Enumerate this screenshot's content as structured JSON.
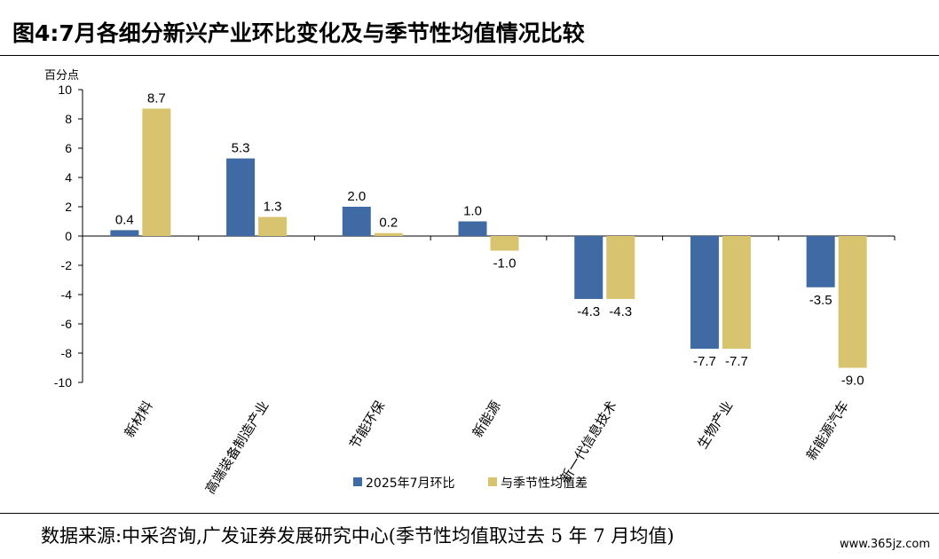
{
  "header": {
    "title": "图4:7月各细分新兴产业环比变化及与季节性均值情况比较"
  },
  "footer": {
    "source": "数据来源:中采咨询,广发证券发展研究中心(季节性均值取过去 5 年 7 月均值)",
    "watermark": "www.365jz.com"
  },
  "colors": {
    "series1": "#3F6AA3",
    "series2": "#D8C36E"
  },
  "chart_data": {
    "type": "bar",
    "ylabel": "百分点",
    "ylim": [
      -10,
      10
    ],
    "yticks": [
      10,
      8,
      6,
      4,
      2,
      0,
      -2,
      -4,
      -6,
      -8,
      -10
    ],
    "categories": [
      "新材料",
      "高端装备制造产业",
      "节能环保",
      "新能源",
      "新一代信息技术",
      "生物产业",
      "新能源汽车"
    ],
    "series": [
      {
        "name": "2025年7月环比",
        "values": [
          0.4,
          5.3,
          2.0,
          1.0,
          -4.3,
          -7.7,
          -3.5
        ],
        "labels": [
          "0.4",
          "5.3",
          "2.0",
          "1.0",
          "-4.3",
          "-7.7",
          "-3.5"
        ]
      },
      {
        "name": "与季节性均值差",
        "values": [
          8.7,
          1.3,
          0.2,
          -1.0,
          -4.3,
          -7.7,
          -9.0
        ],
        "labels": [
          "8.7",
          "1.3",
          "0.2",
          "-1.0",
          "-4.3",
          "-7.7",
          "-9.0"
        ]
      }
    ],
    "legend_position": "bottom",
    "grid": false
  }
}
